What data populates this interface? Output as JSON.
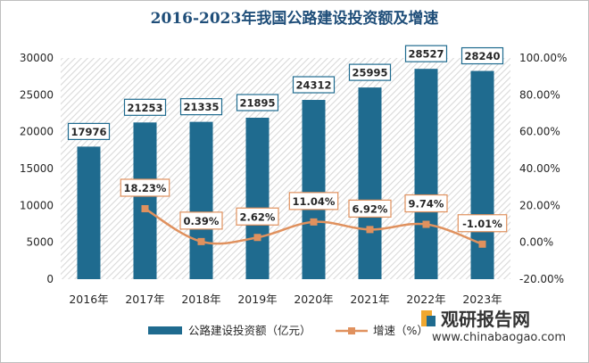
{
  "chart_data": {
    "type": "bar",
    "title": "2016-2023年我国公路建设投资额及增速",
    "categories": [
      "2016年",
      "2017年",
      "2018年",
      "2019年",
      "2020年",
      "2021年",
      "2022年",
      "2023年"
    ],
    "series": [
      {
        "name": "公路建设投资额（亿元）",
        "type": "bar",
        "axis": "left",
        "values": [
          17976,
          21253,
          21335,
          21895,
          24312,
          25995,
          28527,
          28240
        ],
        "labels": [
          "17976",
          "21253",
          "21335",
          "21895",
          "24312",
          "25995",
          "28527",
          "28240"
        ]
      },
      {
        "name": "增速（%）",
        "type": "line",
        "axis": "right",
        "values": [
          null,
          18.23,
          0.39,
          2.62,
          11.04,
          6.92,
          9.74,
          -1.01
        ],
        "labels": [
          "",
          "18.23%",
          "0.39%",
          "2.62%",
          "11.04%",
          "6.92%",
          "9.74%",
          "-1.01%"
        ]
      }
    ],
    "y_left": {
      "ylim": [
        0,
        30000
      ],
      "ticks": [
        "0",
        "5000",
        "10000",
        "15000",
        "20000",
        "25000",
        "30000"
      ]
    },
    "y_right": {
      "ylim": [
        -20,
        100
      ],
      "ticks": [
        "-20.00%",
        "0.00%",
        "20.00%",
        "40.00%",
        "60.00%",
        "80.00%",
        "100.00%"
      ]
    },
    "legend_position": "bottom",
    "colors": {
      "bar": "#1f6b8f",
      "line": "#e0915e",
      "title": "#1f4e79",
      "hatch": "#d9d9d9"
    }
  },
  "watermark": {
    "brand": "观研报告网",
    "url": "www.chinabaogao.com"
  }
}
